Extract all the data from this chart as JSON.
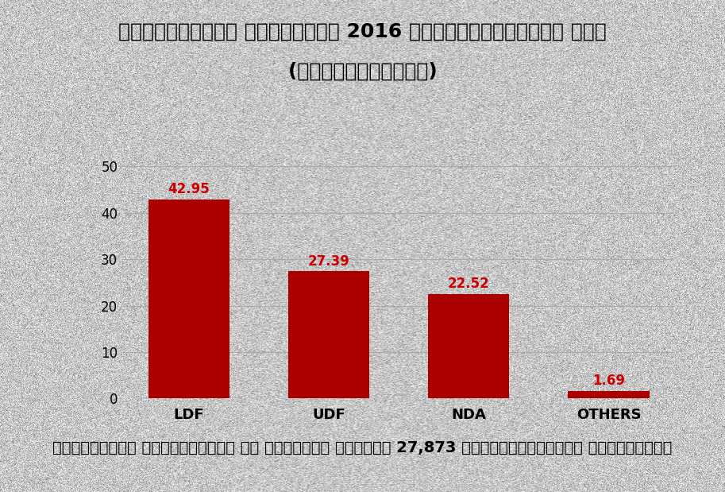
{
  "title_line1": "കോഴിക്കോട് നോര്‍ത്ത് 2016 തെരഞ്ഞെടുപ്പ് ഫലം",
  "title_line2": "(ശതമാനത്തില്‍)",
  "categories": [
    "LDF",
    "UDF",
    "NDA",
    "OTHERS"
  ],
  "values": [
    42.95,
    27.39,
    22.52,
    1.69
  ],
  "bar_color": "#aa0000",
  "label_color": "#cc0000",
  "background_color": "#c8c8c8",
  "text_color": "#000000",
  "ylim": [
    0,
    53
  ],
  "yticks": [
    0,
    10,
    20,
    30,
    40,
    50
  ],
  "footer_text": "എല്ഡിയെഫ് സ്ഥാനാര്‍ധി കെ പ്രദീപ് കുമാര്‍ 27,873 വോട്ടുകള്‍ക്ക് വിജയിച്ചു",
  "grid_color": "#aaaaaa",
  "noise_alpha": 0.18
}
